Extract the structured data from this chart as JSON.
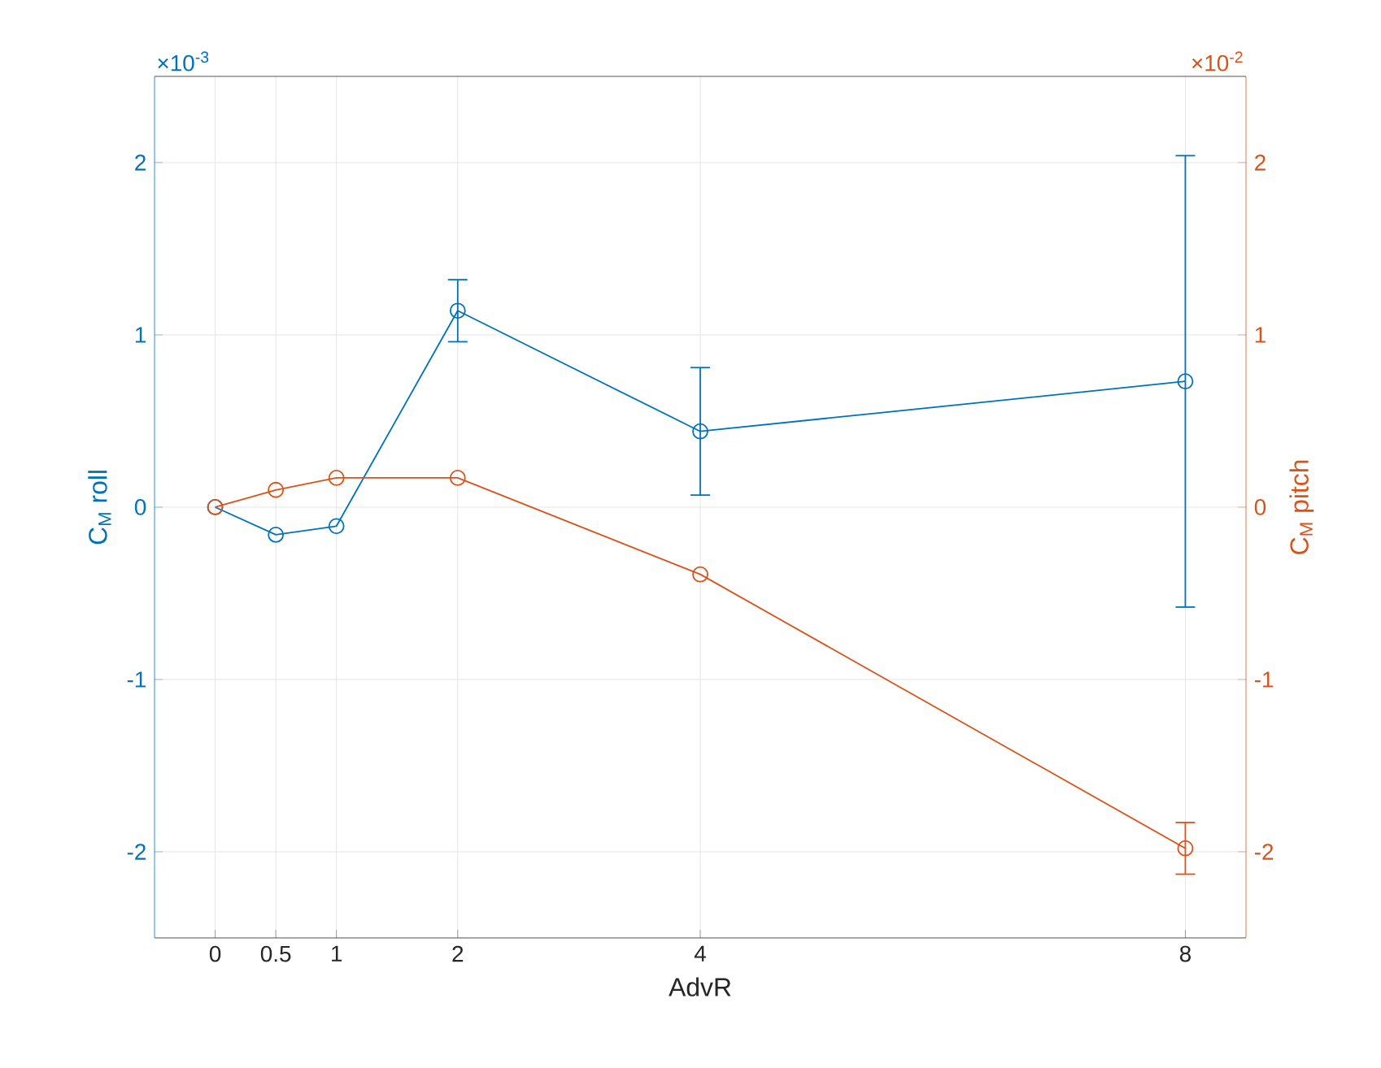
{
  "chart_data": {
    "type": "line",
    "xlabel": "AdvR",
    "ylabel": "C$_{M}$ roll",
    "y2label": "C$_{M}$ pitch",
    "annotations": [
      "×10$^{-3}$",
      "×10$^{-2}$"
    ],
    "x": [
      0,
      0.5,
      1,
      2,
      4,
      8
    ],
    "series": [
      {
        "color": "#0072bd",
        "values": [
          0,
          -0.16,
          -0.11,
          1.14,
          0.44,
          0.73
        ],
        "errors": [
          null,
          null,
          null,
          0.18,
          0.37,
          1.31
        ]
      },
      {
        "color": "#d95319",
        "axis": "y2",
        "values": [
          0,
          0.1,
          0.17,
          0.17,
          -0.39,
          -1.98
        ],
        "errors": [
          null,
          null,
          null,
          null,
          null,
          0.15
        ]
      }
    ],
    "xlim": [
      -0.5,
      8.5
    ],
    "xticks": [
      0,
      0.5,
      1,
      2,
      4,
      8
    ],
    "ylim": [
      -2.5,
      2.5
    ],
    "yticks": [
      -2,
      -1,
      0,
      1,
      2
    ],
    "y2lim": [
      -2.5,
      2.5
    ],
    "y2ticks": [
      -2,
      -1,
      0,
      1,
      2
    ],
    "grid": true,
    "marker": "circle",
    "line_style": "solid"
  }
}
